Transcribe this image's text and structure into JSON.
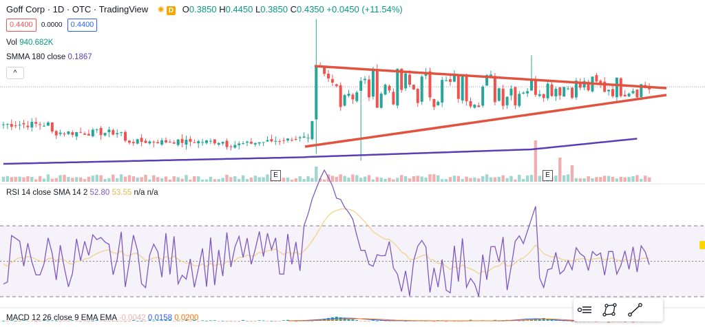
{
  "header": {
    "symbol": "Goff Corp · 1D · OTC · TradingView",
    "market_badge": "D",
    "ohlc": {
      "o_label": "O",
      "o": "0.3850",
      "h_label": "H",
      "h": "0.4450",
      "l_label": "L",
      "l": "0.3850",
      "c_label": "C",
      "c": "0.4350",
      "change": "+0.0450 (+11.54%)"
    },
    "bid": "0.4400",
    "spread": "0.0000",
    "ask": "0.4400",
    "vol_label": "Vol",
    "vol_value": "940.682K",
    "smma_label": "SMMA 180 close",
    "smma_value": "0.1867",
    "collapse_icon": "^"
  },
  "rsi_legend": {
    "label": "RSI 14 close SMA 14 2",
    "rsi_value": "52.80",
    "sma_value": "53.55",
    "extra": "n/a n/a"
  },
  "macd_legend": {
    "label": "MACD 12 26 close 9 EMA EMA",
    "hist": "-0.0042",
    "macd": "0.0158",
    "signal": "0.0200"
  },
  "earnings_markers": [
    "E",
    "E"
  ],
  "colors": {
    "up": "#26a69a",
    "down": "#ef5350",
    "trendline": "#e0533f",
    "smma": "#5b3db5",
    "rsi": "#7e57c2",
    "rsi_ma": "#f2d28a",
    "vol_up": "#9fd6cf",
    "vol_down": "#f2aeae",
    "macd_line": "#2962ff",
    "signal_line": "#ff6d00"
  },
  "chart_data": {
    "type": "candlestick",
    "price_range_shown": [
      0.0,
      0.45
    ],
    "rsi_range": [
      0,
      100
    ],
    "rsi_bands": [
      30,
      70
    ],
    "ohlc_last": {
      "open": 0.385,
      "high": 0.445,
      "low": 0.385,
      "close": 0.435
    },
    "smma_last": 0.1867,
    "volume_last": "940.682K",
    "rsi_last": 52.8,
    "rsi_sma_last": 53.55,
    "macd": {
      "hist": -0.0042,
      "macd": 0.0158,
      "signal": 0.02
    }
  }
}
